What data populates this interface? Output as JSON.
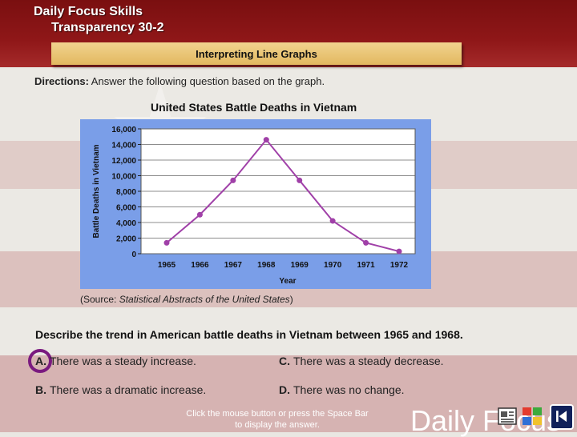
{
  "header": {
    "title_line1": "Daily Focus Skills",
    "title_line2": "Transparency 30-2",
    "banner": "Interpreting Line Graphs"
  },
  "directions": {
    "label": "Directions:",
    "text": " Answer the following question based on the graph."
  },
  "chart_title": "United States Battle Deaths in Vietnam",
  "chart_data": {
    "type": "line",
    "title": "United States Battle Deaths in Vietnam",
    "xlabel": "Year",
    "ylabel": "Battle Deaths in Vietnam",
    "x": [
      "1965",
      "1966",
      "1967",
      "1968",
      "1969",
      "1970",
      "1971",
      "1972"
    ],
    "series": [
      {
        "values": [
          1400,
          5000,
          9400,
          14600,
          9400,
          4200,
          1400,
          300
        ]
      }
    ],
    "ylim": [
      0,
      16000
    ],
    "yticks": [
      "0",
      "2,000",
      "4,000",
      "6,000",
      "8,000",
      "10,000",
      "12,000",
      "14,000",
      "16,000"
    ],
    "grid": true,
    "colors": {
      "line": "#a040a8",
      "marker": "#a040a8",
      "plot_bg": "#ffffff",
      "panel_bg": "#7a9ee8"
    }
  },
  "source": {
    "prefix": "(Source: ",
    "italic": "Statistical Abstracts of the United States",
    "suffix": ")"
  },
  "question": "Describe the trend in American battle deaths in Vietnam between 1965 and 1968.",
  "answers": [
    {
      "letter": "A.",
      "text": "There was a steady increase."
    },
    {
      "letter": "B.",
      "text": "There was a dramatic increase."
    },
    {
      "letter": "C.",
      "text": "There was a steady decrease."
    },
    {
      "letter": "D.",
      "text": "There was no change."
    }
  ],
  "hint": "Click the mouse button or press the Space Bar to display the answer.",
  "ghost_text": "Daily Focus",
  "colors": {
    "header_red": "#8f1718",
    "banner_gold": "#e2b860",
    "selection_circle": "#7a1a7f"
  }
}
